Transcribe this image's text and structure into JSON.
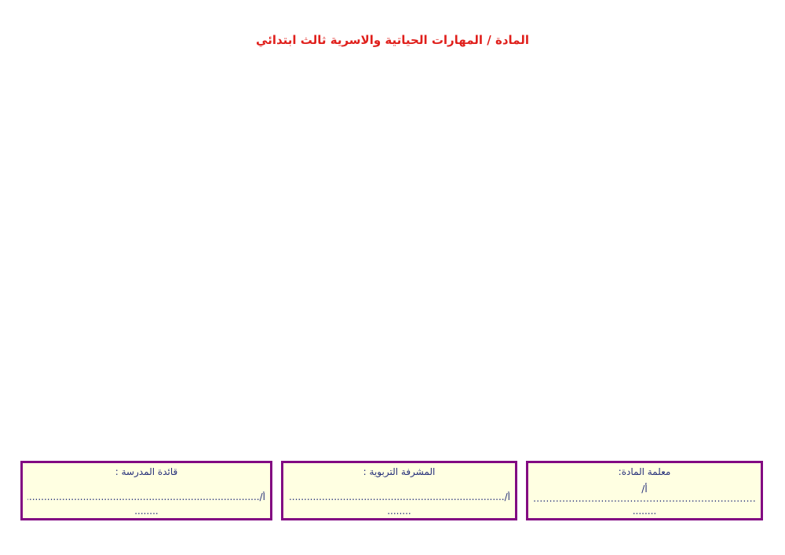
{
  "title": "المادة / المهارات الحياتية والاسرية ثالث ابتدائي",
  "signatures": [
    {
      "label": "قائدة المدرسة :",
      "line": "أ/..............................................................................",
      "dots": "........"
    },
    {
      "label": "المشرفة التربوية :",
      "line": "أ/..............................................................................",
      "dots": "........"
    },
    {
      "label": "معلمة المادة:",
      "prefix": "أ/",
      "line": ".................................................................................",
      "dots": "........"
    }
  ],
  "colors": {
    "title": "#e0201c",
    "border": "#820a82",
    "fill": "#ffffe2",
    "text": "#26307a"
  }
}
